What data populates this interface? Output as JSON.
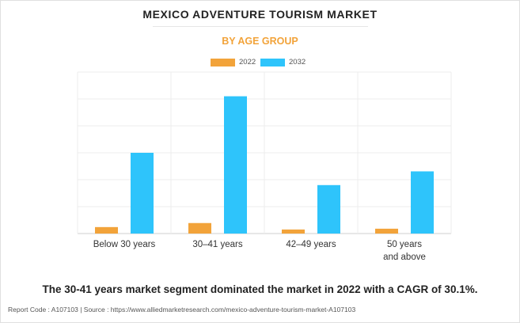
{
  "title": "MEXICO ADVENTURE TOURISM MARKET",
  "subtitle": "BY AGE GROUP",
  "headline": "The 30-41 years market segment dominated the market in 2022 with a CAGR of 30.1%.",
  "footer": "Report Code : A107103  |  Source : https://www.alliedmarketresearch.com/mexico-adventure-tourism-market-A107103",
  "colors": {
    "2022": "#f2a33a",
    "2032": "#2ec4fb",
    "subtitle": "#f2a33a"
  },
  "chart_data": {
    "type": "bar",
    "categories": [
      [
        "Below 30 years"
      ],
      [
        "30–41 years"
      ],
      [
        "42–49 years"
      ],
      [
        "50 years",
        "and above"
      ]
    ],
    "series": [
      {
        "name": "2022",
        "values": [
          8,
          13,
          5,
          6
        ]
      },
      {
        "name": "2032",
        "values": [
          100,
          170,
          60,
          77
        ]
      }
    ],
    "ylim": [
      0,
      200
    ],
    "grid": true,
    "legend": "top-center"
  }
}
